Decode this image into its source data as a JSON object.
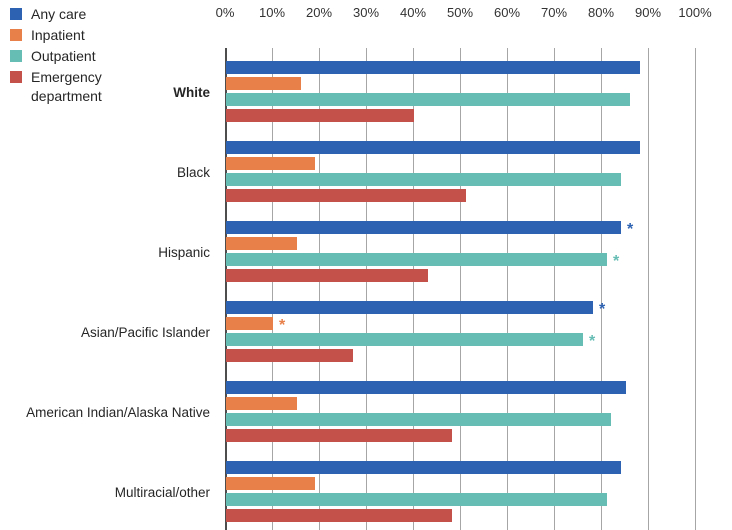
{
  "legend": {
    "items": [
      {
        "label": "Any care",
        "color": "#2d62b2"
      },
      {
        "label": "Inpatient",
        "color": "#e8804a"
      },
      {
        "label": "Outpatient",
        "color": "#66bdb4"
      },
      {
        "label": "Emergency department",
        "color": "#c4524a"
      }
    ]
  },
  "x_axis": {
    "tick_labels": [
      "0%",
      "10%",
      "20%",
      "30%",
      "40%",
      "50%",
      "60%",
      "70%",
      "80%",
      "90%",
      "100%"
    ],
    "min": 0,
    "max": 100
  },
  "chart_data": {
    "type": "bar",
    "orientation": "horizontal",
    "value_unit": "%",
    "title": "",
    "xlabel": "",
    "ylabel": "",
    "xlim": [
      0,
      100
    ],
    "grid": true,
    "legend_position": "top-left",
    "marker_symbol": "*",
    "categories": [
      "White",
      "Black",
      "Hispanic",
      "Asian/Pacific Islander",
      "American Indian/Alaska Native",
      "Multiracial/other"
    ],
    "bold_categories": [
      "White"
    ],
    "series": [
      {
        "name": "Any care",
        "color": "#2d62b2",
        "values": [
          88,
          88,
          84,
          78,
          85,
          84
        ],
        "significance_marker": [
          false,
          false,
          true,
          true,
          false,
          false
        ]
      },
      {
        "name": "Inpatient",
        "color": "#e8804a",
        "values": [
          16,
          19,
          15,
          10,
          15,
          19
        ],
        "significance_marker": [
          false,
          false,
          false,
          true,
          false,
          false
        ]
      },
      {
        "name": "Outpatient",
        "color": "#66bdb4",
        "values": [
          86,
          84,
          81,
          76,
          82,
          81
        ],
        "significance_marker": [
          false,
          false,
          true,
          true,
          false,
          false
        ]
      },
      {
        "name": "Emergency department",
        "color": "#c4524a",
        "values": [
          40,
          51,
          43,
          27,
          48,
          48
        ],
        "significance_marker": [
          false,
          false,
          false,
          false,
          false,
          false
        ]
      }
    ]
  },
  "colors": {
    "gridline": "#a6a6a6",
    "zero_axis": "#4d4d4d",
    "text": "#262626"
  }
}
